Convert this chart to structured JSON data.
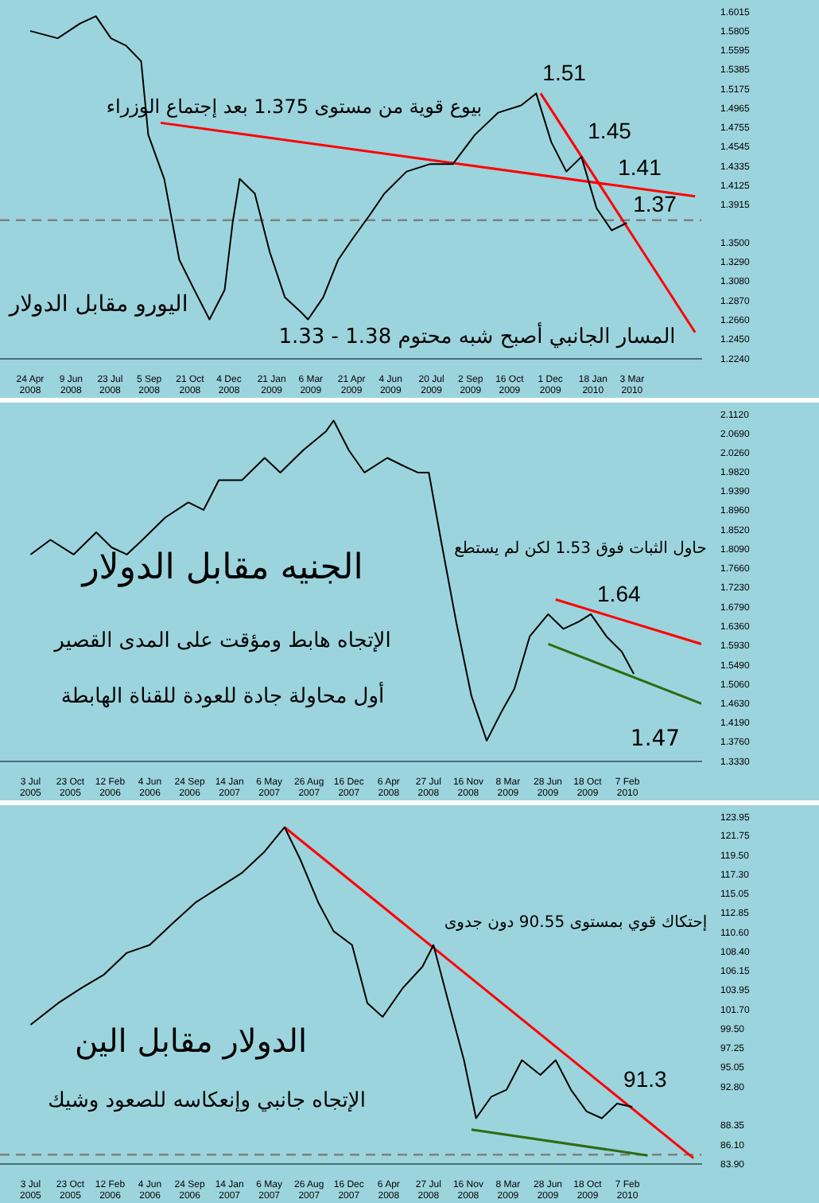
{
  "chart_data": [
    {
      "type": "line",
      "title": "اليورو مقابل الدولار",
      "marker": "none",
      "line_style": "solid",
      "x": [
        "2008-04-24",
        "2008-05-25",
        "2008-06-19",
        "2008-07-07",
        "2008-07-24",
        "2008-08-10",
        "2008-08-27",
        "2008-09-04",
        "2008-09-22",
        "2008-10-09",
        "2008-10-26",
        "2008-11-12",
        "2008-11-29",
        "2008-12-08",
        "2008-12-16",
        "2009-01-02",
        "2009-01-19",
        "2009-02-05",
        "2009-02-23",
        "2009-03-03",
        "2009-03-20",
        "2009-04-06",
        "2009-04-23",
        "2009-05-11",
        "2009-05-28",
        "2009-06-22",
        "2009-07-18",
        "2009-08-13",
        "2009-09-07",
        "2009-10-03",
        "2009-10-29",
        "2009-11-15",
        "2009-12-02",
        "2009-12-19",
        "2010-01-05",
        "2010-01-22",
        "2010-02-08",
        "2010-02-25"
      ],
      "series": [
        {
          "color": "#000000",
          "values": [
            1.581,
            1.573,
            1.589,
            1.597,
            1.573,
            1.565,
            1.548,
            1.468,
            1.42,
            1.332,
            1.299,
            1.267,
            1.299,
            1.372,
            1.42,
            1.404,
            1.34,
            1.291,
            1.275,
            1.267,
            1.291,
            1.332,
            1.356,
            1.38,
            1.404,
            1.428,
            1.436,
            1.436,
            1.468,
            1.492,
            1.5,
            1.513,
            1.46,
            1.428,
            1.444,
            1.388,
            1.364,
            1.372
          ]
        },
        {
          "type": "line",
          "color": "#ff0000",
          "x": [
            "2008-09-18",
            "2010-05-13"
          ],
          "values": [
            1.481,
            1.401
          ]
        },
        {
          "type": "line",
          "color": "#ff0000",
          "x": [
            "2009-11-20",
            "2010-05-13"
          ],
          "values": [
            1.513,
            1.253
          ]
        }
      ],
      "xlim": [
        "2008-03-21",
        "2010-05-20"
      ],
      "ylim": [
        1.224,
        1.6015
      ],
      "xticks": [
        {
          "value": "2008-04-24",
          "label": "24 Apr 2008"
        },
        {
          "value": "2008-06-09",
          "label": "9 Jun 2008"
        },
        {
          "value": "2008-07-23",
          "label": "23 Jul 2008"
        },
        {
          "value": "2008-09-05",
          "label": "5 Sep 2008"
        },
        {
          "value": "2008-10-21",
          "label": "21 Oct 2008"
        },
        {
          "value": "2008-12-04",
          "label": "4 Dec 2008"
        },
        {
          "value": "2009-01-21",
          "label": "21 Jan 2009"
        },
        {
          "value": "2009-03-06",
          "label": "6 Mar 2009"
        },
        {
          "value": "2009-04-21",
          "label": "21 Apr 2009"
        },
        {
          "value": "2009-06-04",
          "label": "4 Jun 2009"
        },
        {
          "value": "2009-07-20",
          "label": "20 Jul 2009"
        },
        {
          "value": "2009-09-02",
          "label": "2 Sep 2009"
        },
        {
          "value": "2009-10-16",
          "label": "16 Oct 2009"
        },
        {
          "value": "2009-12-01",
          "label": "1 Dec 2009"
        },
        {
          "value": "2010-01-18",
          "label": "18 Jan 2010"
        },
        {
          "value": "2010-03-03",
          "label": "3 Mar 2010"
        }
      ],
      "yticks": [
        {
          "value": 1.224,
          "label": "1.2240"
        },
        {
          "value": 1.245,
          "label": "1.2450"
        },
        {
          "value": 1.266,
          "label": "1.2660"
        },
        {
          "value": 1.287,
          "label": "1.2870"
        },
        {
          "value": 1.308,
          "label": "1.3080"
        },
        {
          "value": 1.329,
          "label": "1.3290"
        },
        {
          "value": 1.35,
          "label": "1.3500"
        },
        {
          "value": 1.3915,
          "label": "1.3915"
        },
        {
          "value": 1.4125,
          "label": "1.4125"
        },
        {
          "value": 1.4335,
          "label": "1.4335"
        },
        {
          "value": 1.4545,
          "label": "1.4545"
        },
        {
          "value": 1.4755,
          "label": "1.4755"
        },
        {
          "value": 1.4965,
          "label": "1.4965"
        },
        {
          "value": 1.5175,
          "label": "1.5175"
        },
        {
          "value": 1.5385,
          "label": "1.5385"
        },
        {
          "value": 1.5595,
          "label": "1.5595"
        },
        {
          "value": 1.5805,
          "label": "1.5805"
        },
        {
          "value": 1.6015,
          "label": "1.6015"
        }
      ],
      "ref_lines": [
        {
          "axis": "y",
          "value": 1.375,
          "color": "#808080",
          "line_style": "dashed"
        }
      ],
      "annotations": [
        {
          "text": "1.51",
          "x": "2009-11-15",
          "y": 1.513
        },
        {
          "text": "1.45",
          "x": "2010-01-05",
          "y": 1.45
        },
        {
          "text": "1.41",
          "x": "2010-02-08",
          "y": 1.41
        },
        {
          "text": "1.37",
          "x": "2010-02-25",
          "y": 1.37
        },
        "بيوع قوية من مستوى 1.375 بعد إجتماع الوزراء",
        "المسار الجانبي أصبح شبه محتوم 1.38 - 1.33"
      ]
    },
    {
      "type": "line",
      "title": "الجنيه مقابل الدولار",
      "marker": "none",
      "line_style": "solid",
      "x": [
        "2005-07-03",
        "2005-08-28",
        "2005-11-01",
        "2006-01-04",
        "2006-02-16",
        "2006-03-31",
        "2006-05-14",
        "2006-07-17",
        "2006-09-20",
        "2006-11-02",
        "2006-12-15",
        "2007-02-18",
        "2007-04-23",
        "2007-06-06",
        "2007-08-09",
        "2007-10-13",
        "2007-11-03",
        "2007-12-16",
        "2008-01-29",
        "2008-04-02",
        "2008-05-15",
        "2008-06-27",
        "2008-07-28",
        "2008-08-31",
        "2008-10-13",
        "2008-11-25",
        "2009-01-07",
        "2009-02-19",
        "2009-03-26",
        "2009-05-08",
        "2009-06-29",
        "2009-08-11",
        "2009-09-23",
        "2009-10-27",
        "2009-12-10",
        "2010-01-22",
        "2010-02-25"
      ],
      "series": [
        {
          "color": "#000000",
          "values": [
            1.798,
            1.831,
            1.798,
            1.848,
            1.814,
            1.798,
            1.831,
            1.881,
            1.915,
            1.898,
            1.965,
            1.965,
            2.015,
            1.982,
            2.032,
            2.075,
            2.099,
            2.032,
            1.982,
            2.015,
            1.998,
            1.982,
            1.982,
            1.831,
            1.647,
            1.48,
            1.38,
            1.447,
            1.497,
            1.614,
            1.664,
            1.631,
            1.647,
            1.664,
            1.614,
            1.58,
            1.53
          ]
        },
        {
          "type": "line",
          "color": "#ff0000",
          "x": [
            "2009-07-20",
            "2010-09-03"
          ],
          "values": [
            1.697,
            1.597
          ]
        },
        {
          "type": "line",
          "color": "#2e6b12",
          "x": [
            "2009-06-29",
            "2010-09-03"
          ],
          "values": [
            1.597,
            1.463
          ]
        }
      ],
      "xlim": [
        "2005-04-08",
        "2010-09-03"
      ],
      "ylim": [
        1.333,
        2.112
      ],
      "xticks": [
        {
          "value": "2005-07-03",
          "label": "3 Jul 2005"
        },
        {
          "value": "2005-10-23",
          "label": "23 Oct 2005"
        },
        {
          "value": "2006-02-12",
          "label": "12 Feb 2006"
        },
        {
          "value": "2006-06-04",
          "label": "4 Jun 2006"
        },
        {
          "value": "2006-09-24",
          "label": "24 Sep 2006"
        },
        {
          "value": "2007-01-14",
          "label": "14 Jan 2007"
        },
        {
          "value": "2007-05-06",
          "label": "6 May 2007"
        },
        {
          "value": "2007-08-26",
          "label": "26 Aug 2007"
        },
        {
          "value": "2007-12-16",
          "label": "16 Dec 2007"
        },
        {
          "value": "2008-04-06",
          "label": "6 Apr 2008"
        },
        {
          "value": "2008-07-27",
          "label": "27 Jul 2008"
        },
        {
          "value": "2008-11-16",
          "label": "16 Nov 2008"
        },
        {
          "value": "2009-03-08",
          "label": "8 Mar 2009"
        },
        {
          "value": "2009-06-28",
          "label": "28 Jun 2009"
        },
        {
          "value": "2009-10-18",
          "label": "18 Oct 2009"
        },
        {
          "value": "2010-02-07",
          "label": "7 Feb 2010"
        }
      ],
      "yticks": [
        {
          "value": 1.333,
          "label": "1.3330"
        },
        {
          "value": 1.376,
          "label": "1.3760"
        },
        {
          "value": 1.419,
          "label": "1.4190"
        },
        {
          "value": 1.463,
          "label": "1.4630"
        },
        {
          "value": 1.506,
          "label": "1.5060"
        },
        {
          "value": 1.549,
          "label": "1.5490"
        },
        {
          "value": 1.593,
          "label": "1.5930"
        },
        {
          "value": 1.636,
          "label": "1.6360"
        },
        {
          "value": 1.679,
          "label": "1.6790"
        },
        {
          "value": 1.723,
          "label": "1.7230"
        },
        {
          "value": 1.766,
          "label": "1.7660"
        },
        {
          "value": 1.809,
          "label": "1.8090"
        },
        {
          "value": 1.852,
          "label": "1.8520"
        },
        {
          "value": 1.896,
          "label": "1.8960"
        },
        {
          "value": 1.939,
          "label": "1.9390"
        },
        {
          "value": 1.982,
          "label": "1.9820"
        },
        {
          "value": 2.026,
          "label": "2.0260"
        },
        {
          "value": 2.069,
          "label": "2.0690"
        },
        {
          "value": 2.112,
          "label": "2.1120"
        }
      ],
      "annotations": [
        {
          "text": "1.64",
          "x": "2009-10-27",
          "y": 1.664
        },
        "1.47",
        "حاول الثبات فوق 1.53 لكن لم يستطع",
        "الإتجاه هابط ومؤقت على المدى القصير",
        "أول محاولة جادة للعودة للقناة الهابطة"
      ]
    },
    {
      "type": "line",
      "title": "الدولار مقابل الين",
      "marker": "none",
      "line_style": "solid",
      "x": [
        "2005-07-03",
        "2005-09-19",
        "2005-11-22",
        "2006-01-26",
        "2006-03-31",
        "2006-06-03",
        "2006-08-07",
        "2006-10-10",
        "2006-12-14",
        "2007-02-17",
        "2007-04-23",
        "2007-06-18",
        "2007-08-01",
        "2007-09-21",
        "2007-11-03",
        "2007-12-25",
        "2008-02-06",
        "2008-03-20",
        "2008-05-15",
        "2008-07-10",
        "2008-08-10",
        "2008-09-22",
        "2008-11-04",
        "2008-12-08",
        "2009-01-20",
        "2009-03-04",
        "2009-04-16",
        "2009-06-07",
        "2009-07-20",
        "2009-09-01",
        "2009-10-15",
        "2009-11-27",
        "2010-01-09",
        "2010-02-21"
      ],
      "series": [
        {
          "color": "#000000",
          "values": [
            100.0,
            102.5,
            104.2,
            105.8,
            108.3,
            109.2,
            111.7,
            114.1,
            115.8,
            117.5,
            120.0,
            122.8,
            119.1,
            114.1,
            110.8,
            109.2,
            102.5,
            100.9,
            104.2,
            106.7,
            109.2,
            102.5,
            95.9,
            89.2,
            91.7,
            92.5,
            95.9,
            94.2,
            95.9,
            92.5,
            90.0,
            89.2,
            90.9,
            90.5
          ]
        },
        {
          "type": "line",
          "color": "#ff0000",
          "x": [
            "2007-06-18",
            "2010-08-12"
          ],
          "values": [
            122.8,
            84.6
          ]
        },
        {
          "type": "line",
          "color": "#2e6b12",
          "x": [
            "2008-11-25",
            "2010-04-05"
          ],
          "values": [
            87.9,
            84.9
          ]
        }
      ],
      "xlim": [
        "2005-04-08",
        "2010-09-03"
      ],
      "ylim": [
        83.9,
        123.95
      ],
      "xticks": [
        {
          "value": "2005-07-03",
          "label": "3 Jul 2005"
        },
        {
          "value": "2005-10-23",
          "label": "23 Oct 2005"
        },
        {
          "value": "2006-02-12",
          "label": "12 Feb 2006"
        },
        {
          "value": "2006-06-04",
          "label": "4 Jun 2006"
        },
        {
          "value": "2006-09-24",
          "label": "24 Sep 2006"
        },
        {
          "value": "2007-01-14",
          "label": "14 Jan 2007"
        },
        {
          "value": "2007-05-06",
          "label": "6 May 2007"
        },
        {
          "value": "2007-08-26",
          "label": "26 Aug 2007"
        },
        {
          "value": "2007-12-16",
          "label": "16 Dec 2007"
        },
        {
          "value": "2008-04-06",
          "label": "6 Apr 2008"
        },
        {
          "value": "2008-07-27",
          "label": "27 Jul 2008"
        },
        {
          "value": "2008-11-16",
          "label": "16 Nov 2008"
        },
        {
          "value": "2009-03-08",
          "label": "8 Mar 2009"
        },
        {
          "value": "2009-06-28",
          "label": "28 Jun 2009"
        },
        {
          "value": "2009-10-18",
          "label": "18 Oct 2009"
        },
        {
          "value": "2010-02-07",
          "label": "7 Feb 2010"
        }
      ],
      "yticks": [
        {
          "value": 83.9,
          "label": "83.90"
        },
        {
          "value": 86.1,
          "label": "86.10"
        },
        {
          "value": 88.35,
          "label": "88.35"
        },
        {
          "value": 92.8,
          "label": "92.80"
        },
        {
          "value": 95.05,
          "label": "95.05"
        },
        {
          "value": 97.25,
          "label": "97.25"
        },
        {
          "value": 99.5,
          "label": "99.50"
        },
        {
          "value": 101.7,
          "label": "101.70"
        },
        {
          "value": 103.95,
          "label": "103.95"
        },
        {
          "value": 106.15,
          "label": "106.15"
        },
        {
          "value": 108.4,
          "label": "108.40"
        },
        {
          "value": 110.6,
          "label": "110.60"
        },
        {
          "value": 112.85,
          "label": "112.85"
        },
        {
          "value": 115.05,
          "label": "115.05"
        },
        {
          "value": 117.3,
          "label": "117.30"
        },
        {
          "value": 119.5,
          "label": "119.50"
        },
        {
          "value": 121.75,
          "label": "121.75"
        },
        {
          "value": 123.95,
          "label": "123.95"
        }
      ],
      "ref_lines": [
        {
          "axis": "y",
          "value": 85.0,
          "color": "#808080",
          "line_style": "dashed"
        }
      ],
      "annotations": [
        {
          "text": "91.3",
          "x": "2010-01-09",
          "y": 91.3
        },
        "إحتكاك قوي بمستوى 90.55 دون جدوى",
        "الإتجاه جانبي وإنعكاسه للصعود وشيك"
      ]
    }
  ]
}
